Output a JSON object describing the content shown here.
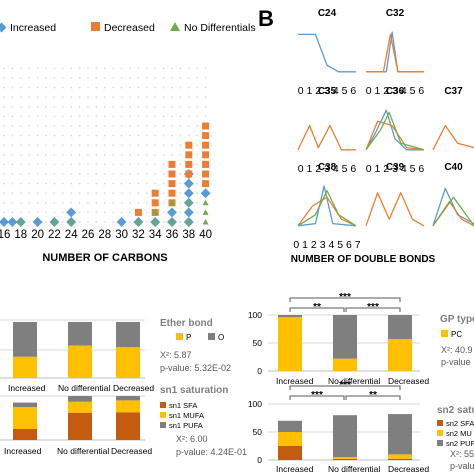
{
  "colors": {
    "increased": "#5b9bd5",
    "decreased": "#ed7d31",
    "no_diff": "#70ad47",
    "p": "#ffc000",
    "o": "#7f7f7f",
    "sfa": "#c55a11",
    "mufa": "#ffc000",
    "pufa": "#7f7f7f",
    "grid": "#d9d9d9"
  },
  "panelA": {
    "legend": [
      "Increased",
      "Decreased",
      "No Differentials"
    ],
    "xlabel": "NUMBER OF CARBONS",
    "ticks": [
      "16",
      "18",
      "20",
      "22",
      "24",
      "26",
      "28",
      "30",
      "32",
      "34",
      "36",
      "38",
      "40"
    ]
  },
  "panelB": {
    "letter": "B",
    "xlabel": "NUMBER OF DOUBLE BONDS",
    "panels": [
      {
        "name": "C24",
        "ticks": "0 1 2 3 4 5 6"
      },
      {
        "name": "C32",
        "ticks": "0 1 2 3 4 5 6"
      },
      {
        "name": "C35",
        "ticks": "0 1 2 3 4 5 6"
      },
      {
        "name": "C36",
        "ticks": "0 1 2 3 4 5 6"
      },
      {
        "name": "C37",
        "ticks": ""
      },
      {
        "name": "C38",
        "ticks": "0 1 2 3 4 5 6 7"
      },
      {
        "name": "C39",
        "ticks": ""
      },
      {
        "name": "C40",
        "ticks": ""
      }
    ]
  },
  "etherBond": {
    "title": "Ether bond",
    "legend": [
      "P",
      "O"
    ],
    "chi2": "X²: 5.87",
    "pvalue": "p-value: 5.32E-02",
    "categories": [
      "Increased",
      "No differential",
      "Decreased"
    ]
  },
  "sn1": {
    "title": "sn1 saturation",
    "legend": [
      "sn1 SFA",
      "sn1 MUFA",
      "sn1 PUFA"
    ],
    "chi2": "X²: 6.00",
    "pvalue": "p-value: 4.24E-01",
    "categories": [
      "Increased",
      "No differential",
      "Decreased"
    ]
  },
  "gpType": {
    "title": "GP type",
    "legend": [
      "PC"
    ],
    "chi2": "X²: 40.9",
    "pvalue": "p-value",
    "yticks": [
      "0",
      "50",
      "100"
    ],
    "categories": [
      "Increased",
      "No differential",
      "Decreased"
    ],
    "sig_low": "**",
    "sig_high": "***",
    "sig_right": "***"
  },
  "sn2": {
    "title": "sn2 satura",
    "legend": [
      "sn2 SFA",
      "sn2 MU",
      "sn2 PUF"
    ],
    "chi2": "X²: 55.",
    "pvalue": "p-value",
    "yticks": [
      "0",
      "50",
      "100"
    ],
    "categories": [
      "Increased",
      "No differential",
      "Decreased"
    ],
    "sig_low": "***",
    "sig_high": "***",
    "sig_right": "**"
  },
  "chart_data": [
    {
      "type": "scatter",
      "xlabel": "NUMBER OF CARBONS",
      "ylabel": "",
      "xlim": [
        16,
        40
      ],
      "series": [
        {
          "name": "Increased",
          "points": [
            [
              16,
              1
            ],
            [
              17,
              1
            ],
            [
              18,
              1
            ],
            [
              20,
              1
            ],
            [
              22,
              1
            ],
            [
              24,
              1
            ],
            [
              24,
              2
            ],
            [
              30,
              1
            ],
            [
              32,
              1
            ],
            [
              34,
              1
            ],
            [
              36,
              1
            ],
            [
              36,
              2
            ],
            [
              38,
              1
            ],
            [
              38,
              2
            ],
            [
              38,
              3
            ],
            [
              38,
              4
            ],
            [
              38,
              5
            ],
            [
              38,
              6
            ],
            [
              40,
              4
            ]
          ]
        },
        {
          "name": "Decreased",
          "points": [
            [
              32,
              2
            ],
            [
              34,
              2
            ],
            [
              34,
              3
            ],
            [
              34,
              4
            ],
            [
              36,
              3
            ],
            [
              36,
              4
            ],
            [
              36,
              5
            ],
            [
              36,
              6
            ],
            [
              36,
              7
            ],
            [
              38,
              6
            ],
            [
              38,
              7
            ],
            [
              38,
              8
            ],
            [
              38,
              9
            ],
            [
              40,
              5
            ],
            [
              40,
              6
            ],
            [
              40,
              7
            ],
            [
              40,
              8
            ],
            [
              40,
              9
            ],
            [
              40,
              10
            ],
            [
              40,
              11
            ]
          ]
        },
        {
          "name": "No Differentials",
          "points": [
            [
              18,
              1
            ],
            [
              22,
              1
            ],
            [
              24,
              1
            ],
            [
              32,
              1
            ],
            [
              34,
              1
            ],
            [
              34,
              2
            ],
            [
              36,
              1
            ],
            [
              36,
              3
            ],
            [
              38,
              1
            ],
            [
              38,
              3
            ],
            [
              40,
              1
            ],
            [
              40,
              2
            ],
            [
              40,
              3
            ]
          ]
        }
      ]
    },
    {
      "type": "bar",
      "title": "Ether bond",
      "categories": [
        "Increased",
        "No differential",
        "Decreased"
      ],
      "series": [
        {
          "name": "P",
          "values": [
            38,
            58,
            55
          ]
        },
        {
          "name": "O",
          "values": [
            62,
            42,
            45
          ]
        }
      ],
      "ylim": [
        0,
        100
      ]
    },
    {
      "type": "bar",
      "title": "GP type",
      "categories": [
        "Increased",
        "No differential",
        "Decreased"
      ],
      "series": [
        {
          "name": "PC",
          "values": [
            96,
            22,
            57
          ]
        },
        {
          "name": "",
          "values": [
            4,
            78,
            43
          ]
        }
      ],
      "ylim": [
        0,
        100
      ]
    },
    {
      "type": "bar",
      "title": "sn1 saturation",
      "categories": [
        "Increased",
        "No differential",
        "Decreased"
      ],
      "series": [
        {
          "name": "sn1 SFA",
          "values": [
            25,
            62,
            63
          ]
        },
        {
          "name": "sn1 MUFA",
          "values": [
            50,
            25,
            27
          ]
        },
        {
          "name": "sn1 PUFA",
          "values": [
            10,
            13,
            10
          ]
        }
      ]
    },
    {
      "type": "bar",
      "title": "sn2 saturation",
      "categories": [
        "Increased",
        "No differential",
        "Decreased"
      ],
      "series": [
        {
          "name": "sn2 SFA",
          "values": [
            25,
            2,
            2
          ]
        },
        {
          "name": "sn2 MU",
          "values": [
            25,
            3,
            8
          ]
        },
        {
          "name": "sn2 PUF",
          "values": [
            20,
            75,
            72
          ]
        }
      ],
      "ylim": [
        0,
        100
      ]
    }
  ]
}
